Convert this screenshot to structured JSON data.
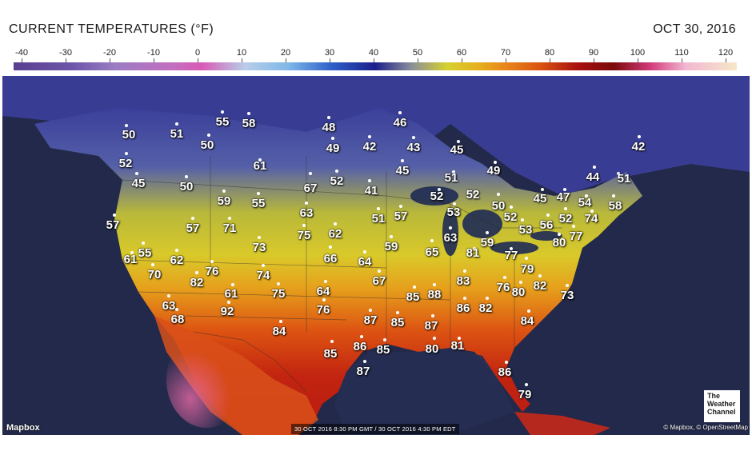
{
  "header": {
    "title": "CURRENT TEMPERATURES (°F)",
    "date": "OCT 30, 2016"
  },
  "scale": {
    "labels": [
      "-40",
      "-30",
      "-20",
      "-10",
      "0",
      "10",
      "20",
      "30",
      "40",
      "50",
      "60",
      "70",
      "80",
      "90",
      "100",
      "110",
      "120"
    ]
  },
  "map": {
    "temperatures": [
      "50",
      "51",
      "55",
      "58",
      "50",
      "52",
      "45",
      "50",
      "57",
      "61",
      "55",
      "70",
      "62",
      "82",
      "76",
      "63",
      "68",
      "92",
      "61",
      "74",
      "75",
      "84",
      "73",
      "57",
      "75",
      "71",
      "55",
      "59",
      "61",
      "67",
      "52",
      "63",
      "62",
      "66",
      "64",
      "67",
      "64",
      "76",
      "48",
      "49",
      "42",
      "46",
      "43",
      "45",
      "41",
      "51",
      "57",
      "59",
      "65",
      "85",
      "88",
      "87",
      "85",
      "87",
      "86",
      "85",
      "87",
      "80",
      "85",
      "83",
      "86",
      "82",
      "76",
      "80",
      "84",
      "81",
      "86",
      "79",
      "82",
      "73",
      "77",
      "81",
      "79",
      "80",
      "77",
      "59",
      "63",
      "53",
      "52",
      "51",
      "52",
      "45",
      "49",
      "50",
      "52",
      "53",
      "56",
      "52",
      "74",
      "54",
      "58",
      "44",
      "51",
      "42",
      "47",
      "45"
    ],
    "mapbox_label": "Mapbox",
    "timestamp": "30 OCT 2016 8:30 PM GMT / 30 OCT 2016 4:30 PM EDT",
    "credits": "© Mapbox, © OpenStreetMap",
    "logo_line1": "The",
    "logo_line2": "Weather",
    "logo_line3": "Channel"
  },
  "colors": {
    "cold": "#1c1f8a",
    "cool": "#d6d12e",
    "warm": "#e8861a",
    "hot": "#a80f10",
    "land_north": "#3b3f9a",
    "ocean": "#222a4a"
  }
}
